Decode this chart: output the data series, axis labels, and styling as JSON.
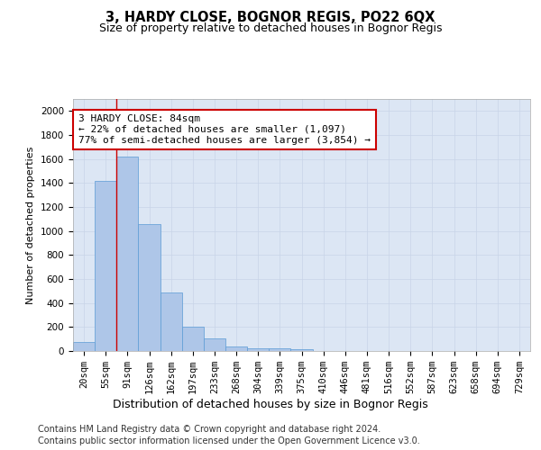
{
  "title1": "3, HARDY CLOSE, BOGNOR REGIS, PO22 6QX",
  "title2": "Size of property relative to detached houses in Bognor Regis",
  "xlabel": "Distribution of detached houses by size in Bognor Regis",
  "ylabel": "Number of detached properties",
  "categories": [
    "20sqm",
    "55sqm",
    "91sqm",
    "126sqm",
    "162sqm",
    "197sqm",
    "233sqm",
    "268sqm",
    "304sqm",
    "339sqm",
    "375sqm",
    "410sqm",
    "446sqm",
    "481sqm",
    "516sqm",
    "552sqm",
    "587sqm",
    "623sqm",
    "658sqm",
    "694sqm",
    "729sqm"
  ],
  "values": [
    75,
    1420,
    1620,
    1060,
    490,
    205,
    105,
    40,
    25,
    20,
    15,
    0,
    0,
    0,
    0,
    0,
    0,
    0,
    0,
    0,
    0
  ],
  "bar_color": "#aec6e8",
  "bar_edge_color": "#5b9bd5",
  "property_line_index": 2,
  "annotation_text": "3 HARDY CLOSE: 84sqm\n← 22% of detached houses are smaller (1,097)\n77% of semi-detached houses are larger (3,854) →",
  "annotation_box_color": "#ffffff",
  "annotation_box_edge_color": "#cc0000",
  "property_line_color": "#cc0000",
  "ylim": [
    0,
    2100
  ],
  "yticks": [
    0,
    200,
    400,
    600,
    800,
    1000,
    1200,
    1400,
    1600,
    1800,
    2000
  ],
  "grid_color": "#c8d4e8",
  "background_color": "#dce6f4",
  "footer_line1": "Contains HM Land Registry data © Crown copyright and database right 2024.",
  "footer_line2": "Contains public sector information licensed under the Open Government Licence v3.0.",
  "title1_fontsize": 10.5,
  "title2_fontsize": 9,
  "xlabel_fontsize": 9,
  "ylabel_fontsize": 8,
  "tick_fontsize": 7.5,
  "annotation_fontsize": 8,
  "footer_fontsize": 7
}
